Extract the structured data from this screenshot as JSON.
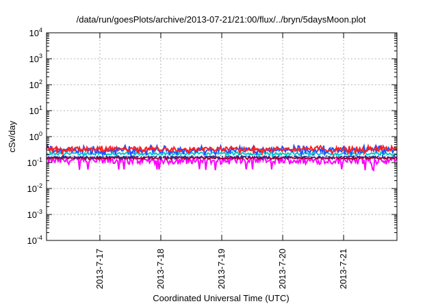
{
  "chart_data": {
    "type": "line",
    "title": "/data/run/goesPlots/archive/2013-07-21/21:00/flux/../bryn/5daysMoon.plot",
    "xlabel": "Coordinated Universal Time (UTC)",
    "ylabel": "cSv/day",
    "yscale": "log",
    "ylim": [
      0.0001,
      10000
    ],
    "y_ticks": [
      {
        "exp": "-4",
        "value": 0.0001
      },
      {
        "exp": "-3",
        "value": 0.001
      },
      {
        "exp": "-2",
        "value": 0.01
      },
      {
        "exp": "-1",
        "value": 0.1
      },
      {
        "exp": "0",
        "value": 1
      },
      {
        "exp": "1",
        "value": 10
      },
      {
        "exp": "2",
        "value": 100
      },
      {
        "exp": "3",
        "value": 1000
      },
      {
        "exp": "4",
        "value": 10000
      }
    ],
    "y_tick_base": "10",
    "xlim": [
      "2013-07-16 03:00",
      "2013-07-21 21:00"
    ],
    "x_ticks": [
      "2013-7-17",
      "2013-7-18",
      "2013-7-19",
      "2013-7-20",
      "2013-7-21"
    ],
    "grid": true,
    "legend": "none",
    "series": [
      {
        "color": "#ff00ff",
        "typical": 0.12,
        "min": 0.05,
        "max": 0.17
      },
      {
        "color": "#a0002a",
        "typical": 0.15,
        "min": 0.13,
        "max": 0.18
      },
      {
        "color": "#2e2e8a",
        "typical": 0.17,
        "min": 0.14,
        "max": 0.2
      },
      {
        "color": "#ffffff",
        "typical": 0.19,
        "min": 0.16,
        "max": 0.22
      },
      {
        "color": "#00c8c8",
        "typical": 0.22,
        "min": 0.18,
        "max": 0.27
      },
      {
        "color": "#2050ff",
        "typical": 0.3,
        "min": 0.2,
        "max": 0.45
      },
      {
        "color": "#ff2020",
        "typical": 0.33,
        "min": 0.22,
        "max": 0.45
      }
    ]
  }
}
